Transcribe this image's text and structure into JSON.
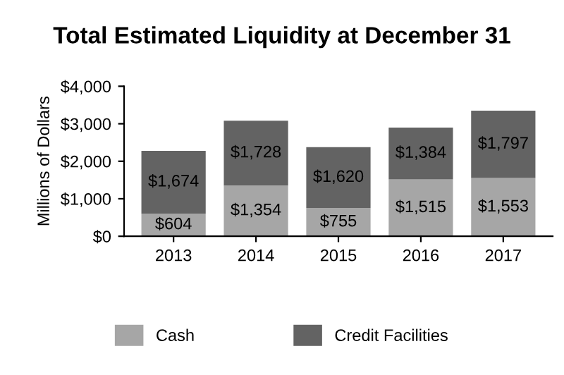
{
  "chart_data": {
    "type": "bar",
    "title": "Total Estimated Liquidity at December 31",
    "ylabel": "Millions of Dollars",
    "categories": [
      "2013",
      "2014",
      "2015",
      "2016",
      "2017"
    ],
    "stacked": true,
    "series": [
      {
        "name": "Cash",
        "color": "#a6a6a6",
        "values": [
          604,
          1354,
          755,
          1515,
          1553
        ],
        "value_labels": [
          "$604",
          "$1,354",
          "$755",
          "$1,515",
          "$1,553"
        ]
      },
      {
        "name": "Credit Facilities",
        "color": "#636363",
        "values": [
          1674,
          1728,
          1620,
          1384,
          1797
        ],
        "value_labels": [
          "$1,674",
          "$1,728",
          "$1,620",
          "$1,384",
          "$1,797"
        ]
      }
    ],
    "ylim": [
      0,
      4000
    ],
    "yticks": [
      {
        "value": 0,
        "label": "$0"
      },
      {
        "value": 1000,
        "label": "$1,000"
      },
      {
        "value": 2000,
        "label": "$2,000"
      },
      {
        "value": 3000,
        "label": "$3,000"
      },
      {
        "value": 4000,
        "label": "$4,000"
      }
    ],
    "grid": false,
    "legend": "bottom"
  }
}
